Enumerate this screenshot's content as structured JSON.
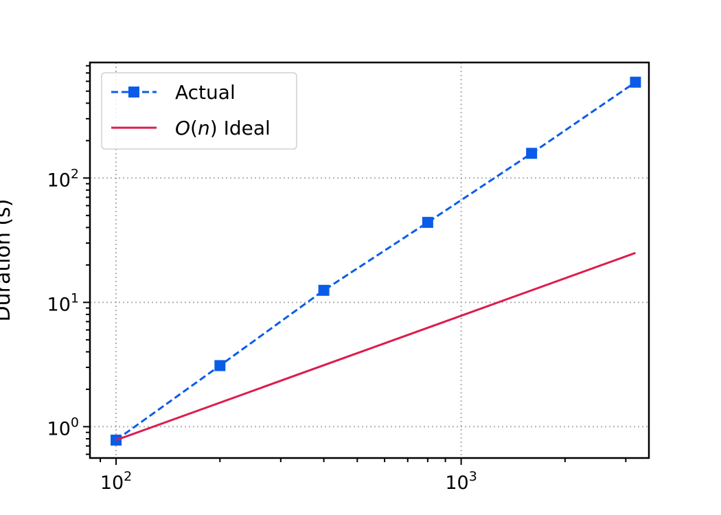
{
  "chart_data": {
    "type": "line",
    "x_scale": "log",
    "y_scale": "log",
    "xlim": [
      84,
      3500
    ],
    "ylim": [
      0.56,
      850
    ],
    "grid": true,
    "legend_position": "top-left",
    "ylabel": "Duration (s)",
    "xlabel": "",
    "x_ticks": [
      {
        "value": 100,
        "base": "10",
        "exp": "2"
      },
      {
        "value": 1000,
        "base": "10",
        "exp": "3"
      }
    ],
    "y_ticks": [
      {
        "value": 1,
        "base": "10",
        "exp": "0"
      },
      {
        "value": 10,
        "base": "10",
        "exp": "1"
      },
      {
        "value": 100,
        "base": "10",
        "exp": "2"
      }
    ],
    "series": [
      {
        "name": "Actual",
        "color": "#0a5ce8",
        "style": "dashed",
        "marker": "square",
        "x": [
          100,
          200,
          400,
          800,
          1600,
          3200
        ],
        "y": [
          0.78,
          3.1,
          12.5,
          44,
          158,
          590
        ]
      },
      {
        "name": "O(n) Ideal",
        "name_math": "O",
        "name_paren_open": "(",
        "name_var": "n",
        "name_paren_close": ")",
        "name_rest": " Ideal",
        "color": "#dc1c4b",
        "style": "solid",
        "marker": "none",
        "x": [
          100,
          3200
        ],
        "y": [
          0.78,
          25
        ]
      }
    ]
  }
}
